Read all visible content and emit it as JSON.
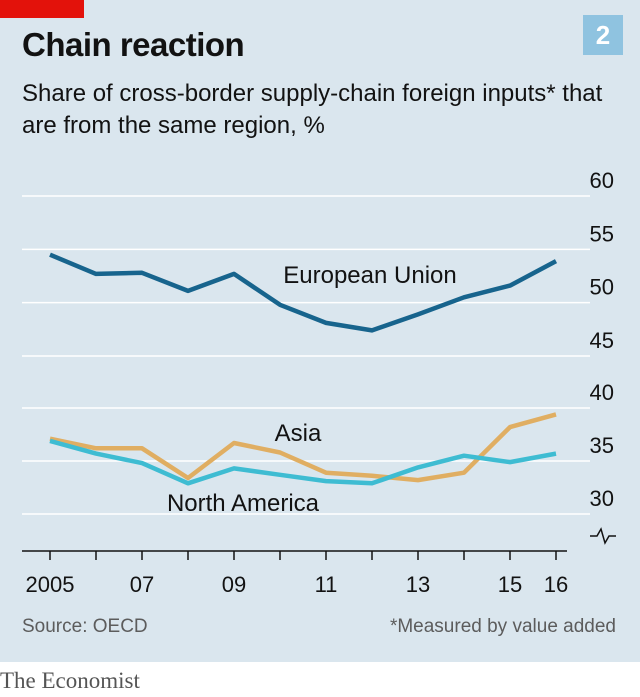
{
  "header": {
    "title": "Chain reaction",
    "subtitle": "Share of cross-border supply-chain foreign inputs* that are from the same region, %",
    "badge": "2"
  },
  "footer": {
    "source": "Source: OECD",
    "footnote": "*Measured by value added",
    "brand": "The Economist"
  },
  "colors": {
    "background": "#dae6ee",
    "accent_red": "#e3120b",
    "european_union": "#17648d",
    "asia": "#e0ae62",
    "north_america": "#3ebcd2"
  },
  "chart_data": {
    "type": "line",
    "x": [
      2005,
      2006,
      2007,
      2008,
      2009,
      2010,
      2011,
      2012,
      2013,
      2014,
      2015,
      2016
    ],
    "x_tick_labels": [
      "2005",
      "07",
      "09",
      "11",
      "13",
      "15",
      "16"
    ],
    "x_tick_values": [
      2005,
      2007,
      2009,
      2011,
      2013,
      2015,
      2016
    ],
    "y_axis_upper": {
      "range": [
        45,
        60
      ],
      "ticks": [
        60,
        55,
        50,
        45
      ]
    },
    "y_axis_lower": {
      "range": [
        30,
        40
      ],
      "ticks": [
        40,
        35,
        30
      ]
    },
    "axis_break": true,
    "y_axis_position": "right",
    "grid": true,
    "series": [
      {
        "name": "European Union",
        "panel": "upper",
        "color": "#17648d",
        "values": [
          54.5,
          52.7,
          52.8,
          51.1,
          52.7,
          49.8,
          48.1,
          47.4,
          48.9,
          50.5,
          51.6,
          53.9
        ]
      },
      {
        "name": "Asia",
        "panel": "lower",
        "color": "#e0ae62",
        "values": [
          37.1,
          36.2,
          36.2,
          33.4,
          36.7,
          35.8,
          33.9,
          33.6,
          33.2,
          33.9,
          38.2,
          39.4
        ]
      },
      {
        "name": "North America",
        "panel": "lower",
        "color": "#3ebcd2",
        "values": [
          36.9,
          35.7,
          34.8,
          32.9,
          34.3,
          33.7,
          33.1,
          32.9,
          34.4,
          35.5,
          34.9,
          35.7
        ]
      }
    ]
  }
}
